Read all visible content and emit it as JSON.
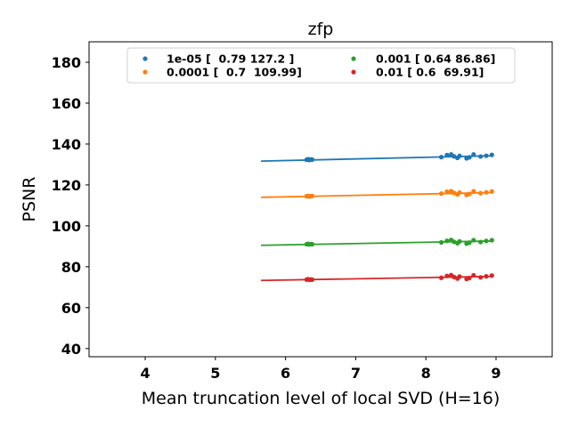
{
  "chart_data": {
    "type": "scatter",
    "title": "zfp",
    "xlabel": "Mean truncation level of local SVD (H=16)",
    "ylabel": "PSNR",
    "xlim": [
      3.2,
      9.8
    ],
    "ylim": [
      36,
      190
    ],
    "xticks": [
      4,
      5,
      6,
      7,
      8,
      9
    ],
    "yticks": [
      40,
      60,
      80,
      100,
      120,
      140,
      160,
      180
    ],
    "grid": false,
    "legend_position": "upper-center",
    "legend_columns": 2,
    "x_points": [
      6.3,
      6.32,
      6.34,
      6.36,
      6.38,
      8.22,
      8.3,
      8.36,
      8.4,
      8.45,
      8.48,
      8.58,
      8.62,
      8.68,
      8.78,
      8.86,
      8.94
    ],
    "series": [
      {
        "name": "1e-05 [  0.79 127.2 ]",
        "color": "#1f77b4",
        "y": [
          132.3,
          132.6,
          132.2,
          132.5,
          132.4,
          133.6,
          134.6,
          134.9,
          134.0,
          133.2,
          134.2,
          133.0,
          133.5,
          134.9,
          133.9,
          134.3,
          134.7
        ],
        "fit": {
          "slope": 0.79,
          "intercept": 127.2,
          "x_range": [
            5.65,
            8.95
          ]
        }
      },
      {
        "name": "0.0001 [  0.7  109.99]",
        "color": "#ff7f0e",
        "y": [
          114.5,
          114.6,
          114.4,
          114.5,
          114.6,
          115.8,
          116.7,
          117.0,
          116.1,
          115.4,
          116.3,
          115.1,
          115.6,
          116.9,
          116.0,
          116.4,
          116.8
        ],
        "fit": {
          "slope": 0.7,
          "intercept": 109.99,
          "x_range": [
            5.65,
            8.95
          ]
        }
      },
      {
        "name": "0.001 [ 0.64 86.86]",
        "color": "#2ca02c",
        "y": [
          91.0,
          91.2,
          90.9,
          91.1,
          91.0,
          91.9,
          92.7,
          93.1,
          92.2,
          91.5,
          92.4,
          91.3,
          91.8,
          93.0,
          92.1,
          92.6,
          93.0
        ],
        "fit": {
          "slope": 0.64,
          "intercept": 86.86,
          "x_range": [
            5.65,
            8.95
          ]
        }
      },
      {
        "name": "0.01 [ 0.6  69.91]",
        "color": "#d62728",
        "y": [
          73.7,
          73.9,
          73.6,
          73.8,
          73.7,
          74.6,
          75.5,
          75.9,
          75.0,
          74.2,
          75.2,
          74.0,
          74.5,
          75.8,
          74.8,
          75.3,
          75.7
        ],
        "fit": {
          "slope": 0.6,
          "intercept": 69.91,
          "x_range": [
            5.65,
            8.95
          ]
        }
      }
    ]
  }
}
